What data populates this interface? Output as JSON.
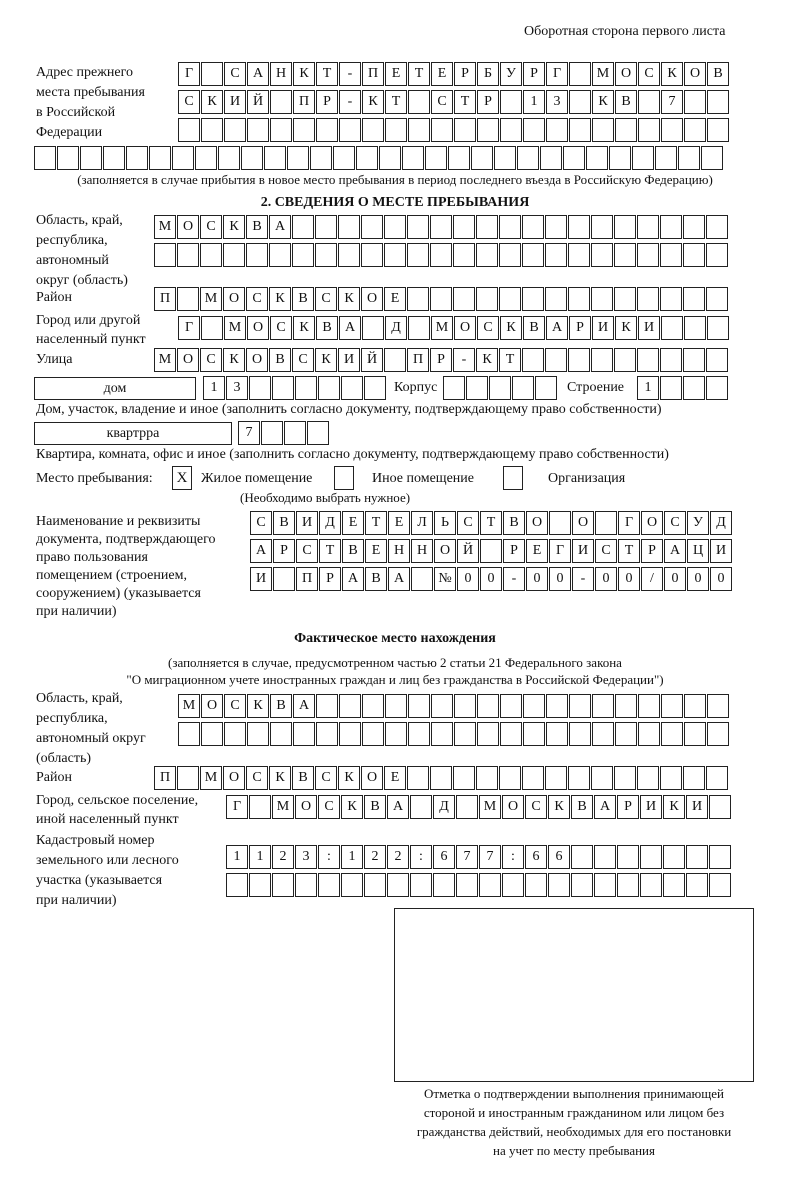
{
  "header": {
    "page_label": "Оборотная сторона первого листа"
  },
  "previous_address": {
    "label": [
      "Адрес прежнего",
      "места пребывания",
      "в Российской",
      "Федерации"
    ],
    "rows": [
      "Г САНКТ-ПЕТЕРБУРГ МОСКОВ",
      "СКИЙ ПР-КТ СТР 13 КВ 7",
      "",
      ""
    ],
    "note": "(заполняется в случае прибытия в новое место пребывания в период последнего въезда в Российскую Федерацию)"
  },
  "stay": {
    "section_title": "2. СВЕДЕНИЯ О МЕСТЕ ПРЕБЫВАНИЯ",
    "region_label": [
      "Область, край,",
      "республика,",
      "автономный",
      "округ (область)"
    ],
    "region_rows": [
      "МОСКВА",
      ""
    ],
    "district_label": "Район",
    "district": "П МОСКВСКОЕ",
    "city_label": [
      "Город или другой",
      "населенный пункт"
    ],
    "city": "Г МОСКВА Д МОСКВАРИКИ",
    "street_label": "Улица",
    "street": "МОСКОВСКИЙ ПР-КТ",
    "house_type": "дом",
    "house_number": "13",
    "korpus_label": "Корпус",
    "korpus": "",
    "building_label": "Строение",
    "building": "1",
    "house_note": "Дом, участок, владение и иное (заполнить согласно документу, подтверждающему право собственности)",
    "apartment_type": "квартрра",
    "apartment_number": "7",
    "apartment_note": "Квартира, комната, офис и иное (заполнить согласно документу, подтверждающему право собственности)",
    "place_label": "Место пребывания:",
    "place_options": [
      {
        "label": "Жилое помещение",
        "mark": "X",
        "checked": true
      },
      {
        "label": "Иное помещение",
        "mark": "",
        "checked": false
      },
      {
        "label": "Организация",
        "mark": "",
        "checked": false
      }
    ],
    "place_note": "(Необходимо выбрать нужное)",
    "document_label": [
      "Наименование и реквизиты",
      "документа, подтверждающего",
      "право пользования",
      "помещением (строением,",
      "сооружением) (указывается",
      "при наличии)"
    ],
    "document_rows": [
      "СВИДЕТЕЛЬСТВО О ГОСУД",
      "АРСТВЕННОЙ РЕГИСТРАЦИ",
      "И ПРАВА №00-00-00/000"
    ]
  },
  "actual": {
    "title": "Фактическое место нахождения",
    "note_1": "(заполняется в случае, предусмотренном частью 2 статьи 21 Федерального закона",
    "note_2": "\"О миграционном учете иностранных граждан и лиц без гражданства в Российской Федерации\")",
    "region_label": [
      "Область, край,",
      "республика,",
      "автономный округ",
      "(область)"
    ],
    "region_rows": [
      "МОСКВА",
      ""
    ],
    "district_label": "Район",
    "district": "П МОСКВСКОЕ",
    "city_label": [
      "Город, сельское поселение,",
      "иной населенный пункт"
    ],
    "city": "Г МОСКВА Д МОСКВАРИКИ",
    "cadastral_label": [
      "Кадастровый номер",
      "земельного или лесного",
      "участка (указывается",
      "при наличии)"
    ],
    "cadastral_rows": [
      "1123:122:677:66",
      ""
    ]
  },
  "confirmation": {
    "caption": [
      "Отметка о подтверждении выполнения принимающей",
      "стороной и иностранным гражданином или лицом без",
      "гражданства действий, необходимых для его постановки",
      "на учет по месту пребывания"
    ]
  }
}
